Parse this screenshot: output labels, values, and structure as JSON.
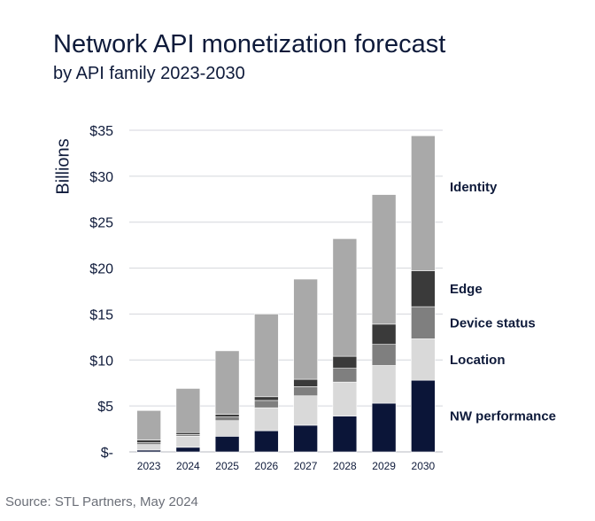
{
  "chart_data": {
    "type": "bar",
    "stacked": true,
    "title": "Network API monetization forecast",
    "subtitle": "by API family 2023-2030",
    "xlabel": "",
    "ylabel": "Billions",
    "ylim": [
      0,
      35
    ],
    "yticks": [
      {
        "value": 0,
        "label": "$-"
      },
      {
        "value": 5,
        "label": "$5"
      },
      {
        "value": 10,
        "label": "$10"
      },
      {
        "value": 15,
        "label": "$15"
      },
      {
        "value": 20,
        "label": "$20"
      },
      {
        "value": 25,
        "label": "$25"
      },
      {
        "value": 30,
        "label": "$30"
      },
      {
        "value": 35,
        "label": "$35"
      }
    ],
    "grid": true,
    "categories": [
      "2023",
      "2024",
      "2025",
      "2026",
      "2027",
      "2028",
      "2029",
      "2030"
    ],
    "series": [
      {
        "name": "NW performance",
        "color": "#0b1538",
        "values": [
          0.2,
          0.5,
          1.7,
          2.3,
          2.9,
          3.9,
          5.3,
          7.8
        ]
      },
      {
        "name": "Location",
        "color": "#d9d9d9",
        "values": [
          0.6,
          1.2,
          1.7,
          2.5,
          3.2,
          3.7,
          4.1,
          4.5
        ]
      },
      {
        "name": "Device status",
        "color": "#7f7f7f",
        "values": [
          0.2,
          0.2,
          0.4,
          0.8,
          1.0,
          1.5,
          2.3,
          3.5
        ]
      },
      {
        "name": "Edge",
        "color": "#3a3a3a",
        "values": [
          0.3,
          0.2,
          0.3,
          0.4,
          0.8,
          1.3,
          2.2,
          3.9
        ]
      },
      {
        "name": "Identity",
        "color": "#a9a9a9",
        "values": [
          3.2,
          4.8,
          6.9,
          9.0,
          10.9,
          12.8,
          14.1,
          14.7
        ]
      }
    ],
    "legend_position": "right, aligned with last bar"
  },
  "source": "Source: STL Partners, May 2024"
}
